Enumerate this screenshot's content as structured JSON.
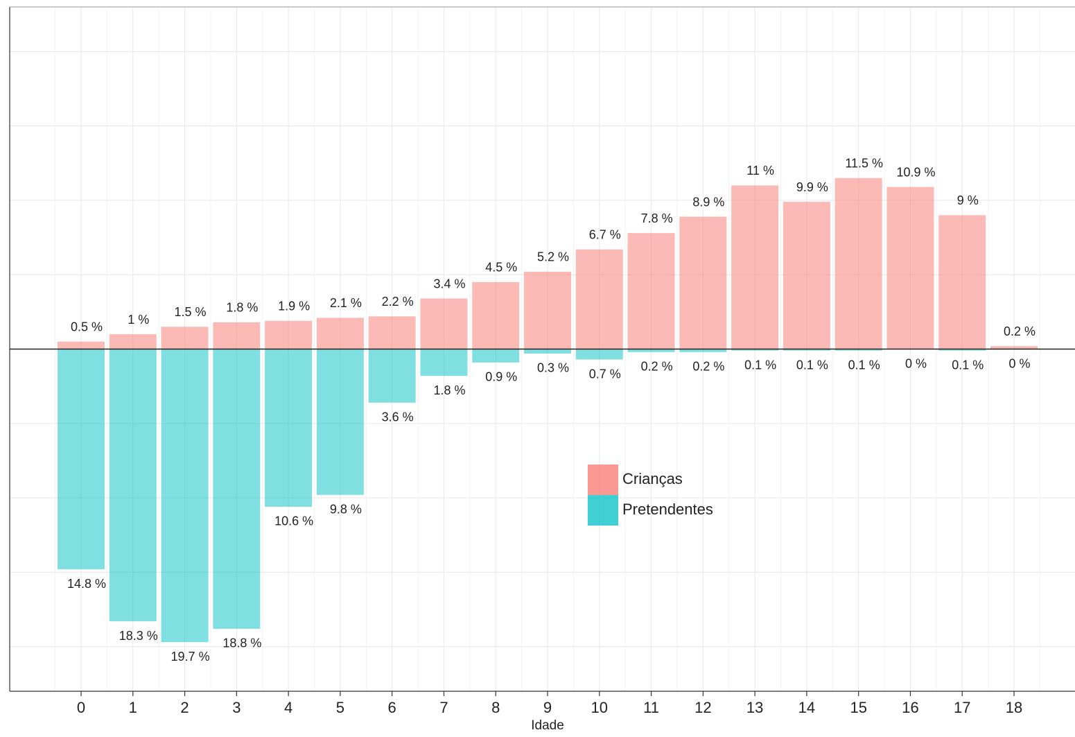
{
  "chart_data": {
    "type": "bar",
    "xlabel": "Idade",
    "categories": [
      "0",
      "1",
      "2",
      "3",
      "4",
      "5",
      "6",
      "7",
      "8",
      "9",
      "10",
      "11",
      "12",
      "13",
      "14",
      "15",
      "16",
      "17",
      "18"
    ],
    "series": [
      {
        "name": "Crianças",
        "color": "#f8766d",
        "values": [
          0.5,
          1,
          1.5,
          1.8,
          1.9,
          2.1,
          2.2,
          3.4,
          4.5,
          5.2,
          6.7,
          7.8,
          8.9,
          11,
          9.9,
          11.5,
          10.9,
          9,
          0.2
        ],
        "value_labels": [
          "0.5 %",
          "1 %",
          "1.5 %",
          "1.8 %",
          "1.9 %",
          "2.1 %",
          "2.2 %",
          "3.4 %",
          "4.5 %",
          "5.2 %",
          "6.7 %",
          "7.8 %",
          "8.9 %",
          "11 %",
          "9.9 %",
          "11.5 %",
          "10.9 %",
          "9 %",
          "0.2 %"
        ]
      },
      {
        "name": "Pretendentes",
        "color": "#00bfc4",
        "values": [
          -14.8,
          -18.3,
          -19.7,
          -18.8,
          -10.6,
          -9.8,
          -3.6,
          -1.8,
          -0.9,
          -0.3,
          -0.7,
          -0.2,
          -0.2,
          -0.1,
          -0.1,
          -0.1,
          0,
          -0.1,
          0
        ],
        "value_labels": [
          "14.8 %",
          "18.3 %",
          "19.7 %",
          "18.8 %",
          "10.6 %",
          "9.8 %",
          "3.6 %",
          "1.8 %",
          "0.9 %",
          "0.3 %",
          "0.7 %",
          "0.2 %",
          "0.2 %",
          "0.1 %",
          "0.1 %",
          "0.1 %",
          "0 %",
          "0.1 %",
          "0 %"
        ]
      }
    ],
    "ylim": [
      -23,
      23
    ],
    "yticks": [
      -20,
      -15,
      -10,
      -5,
      0,
      5,
      10,
      15,
      20
    ],
    "grid": true,
    "legend": "center"
  }
}
